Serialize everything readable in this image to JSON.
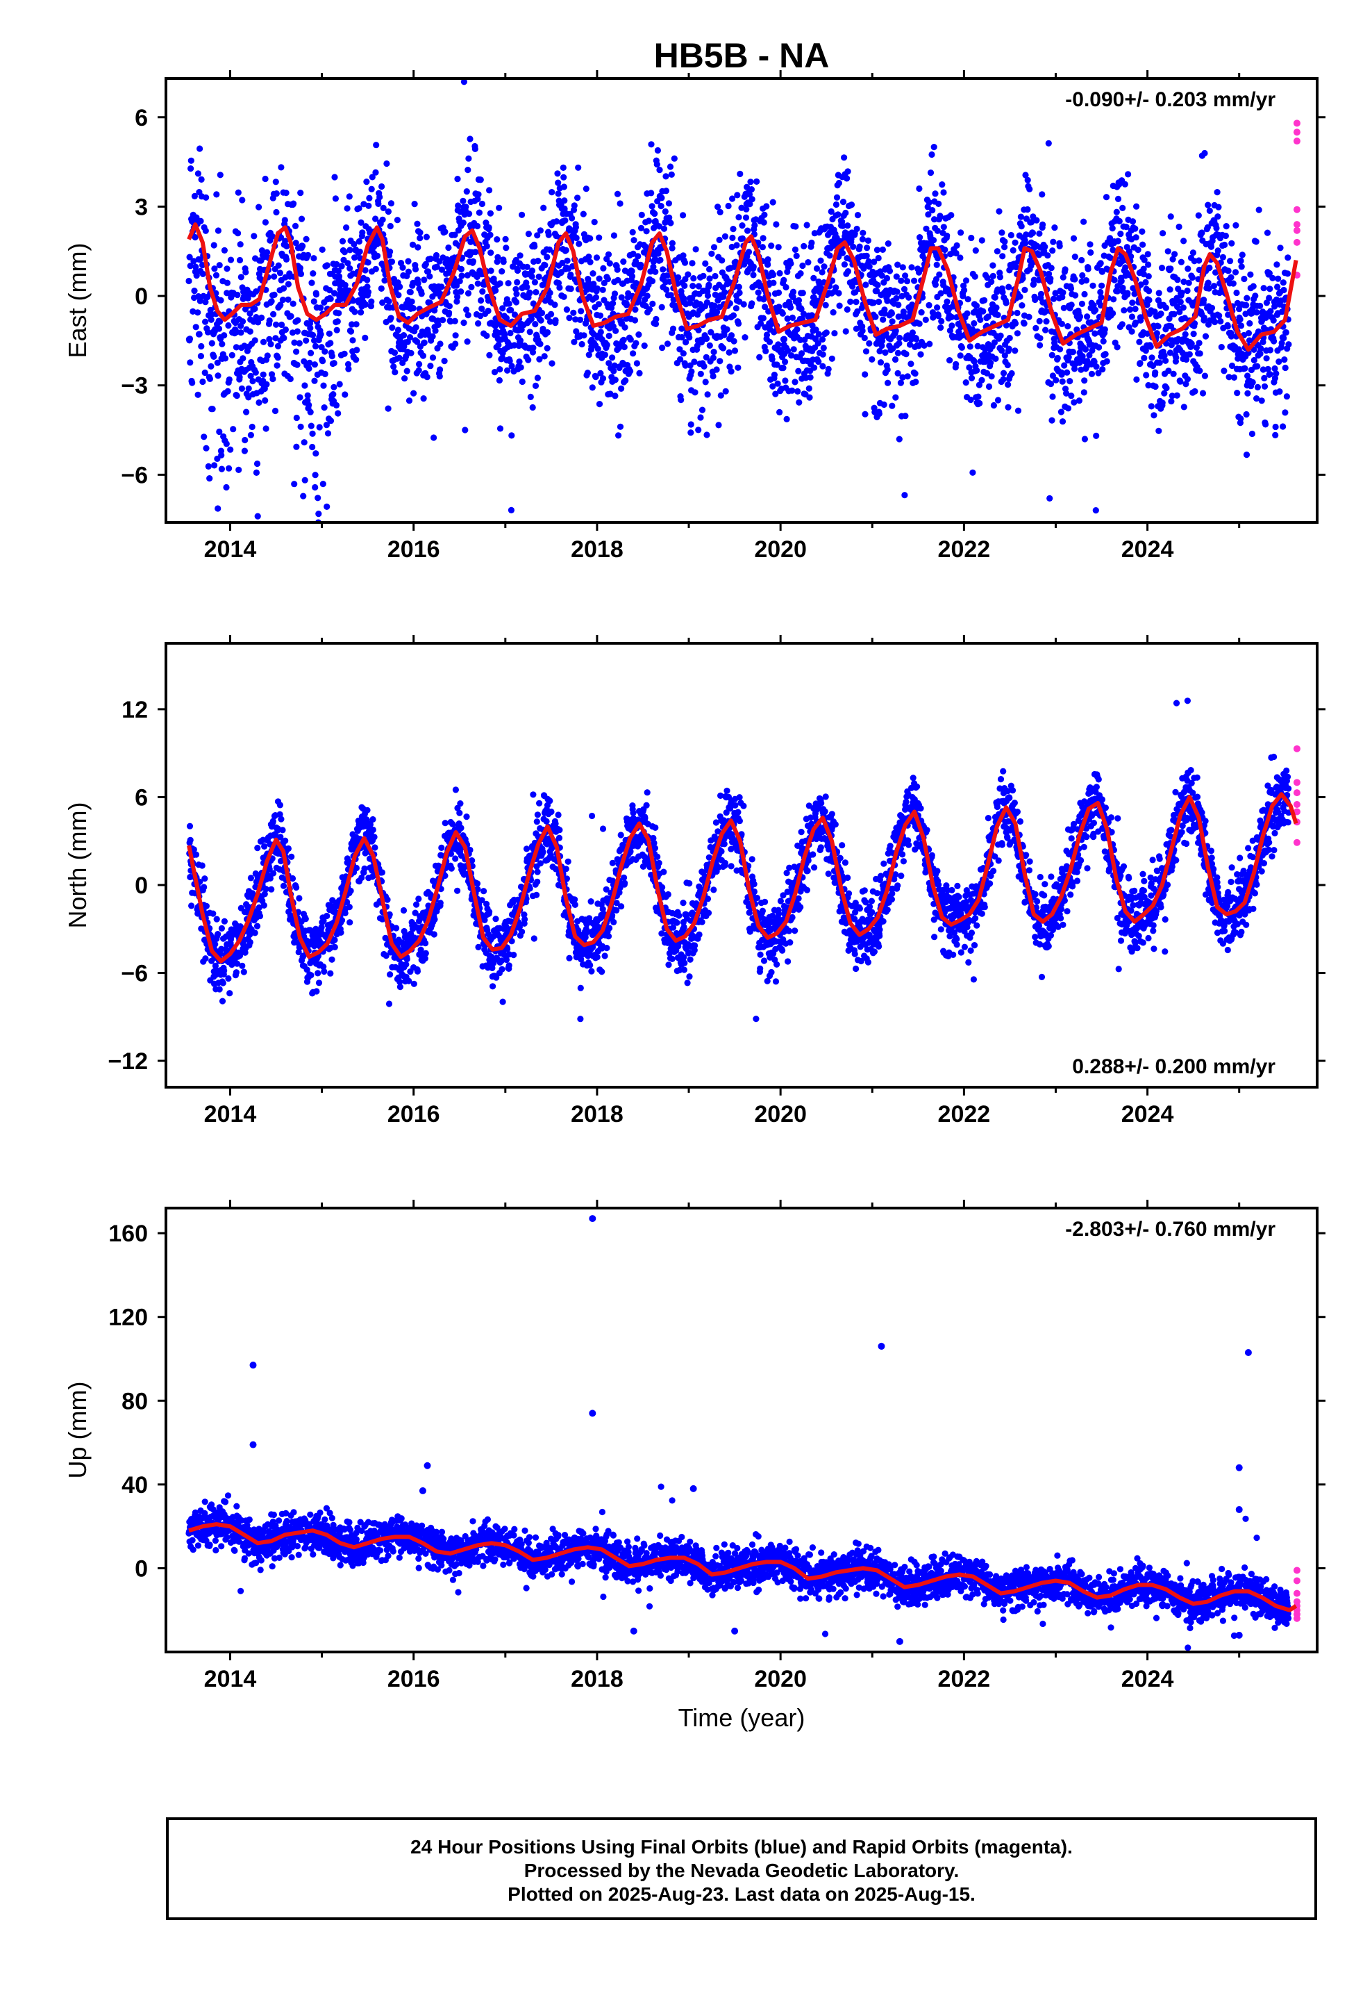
{
  "title": "HB5B - NA",
  "colors": {
    "final_orbits": "#0000ff",
    "rapid_orbits": "#ff33cc",
    "model_fit": "#ee1111",
    "frame": "#000000"
  },
  "footer": {
    "line1": "24 Hour Positions Using Final Orbits (blue) and Rapid Orbits (magenta).",
    "line2": "Processed by the Nevada Geodetic Laboratory.",
    "line3": "Plotted on 2025-Aug-23. Last data on 2025-Aug-15."
  },
  "chart_data": [
    {
      "type": "scatter",
      "component": "east",
      "ylabel": "East (mm)",
      "xlabel": "",
      "xlim": [
        2013.3,
        2025.85
      ],
      "ylim": [
        -7.6,
        7.3
      ],
      "xticks": [
        2014,
        2016,
        2018,
        2020,
        2022,
        2024
      ],
      "yticks": [
        -6,
        -3,
        0,
        3,
        6
      ],
      "rate_label": "-0.090+/- 0.203 mm/yr",
      "rate_position": "top-right",
      "data_span": [
        2013.55,
        2025.62
      ],
      "series": [
        {
          "name": "Final Orbits (blue)",
          "kind": "scatter"
        },
        {
          "name": "Rapid Orbits (magenta)",
          "kind": "scatter",
          "values": [
            5.8,
            5.5,
            5.2,
            2.9,
            2.4,
            2.2,
            1.8,
            0.7
          ]
        }
      ],
      "fit_curve": {
        "x": [
          2013.55,
          2013.62,
          2013.7,
          2013.78,
          2013.86,
          2013.94,
          2014.02,
          2014.12,
          2014.22,
          2014.32,
          2014.42,
          2014.52,
          2014.6,
          2014.66,
          2014.74,
          2014.84,
          2014.94,
          2015.04,
          2015.14,
          2015.26,
          2015.38,
          2015.5,
          2015.6,
          2015.66,
          2015.74,
          2015.84,
          2015.94,
          2016.04,
          2016.16,
          2016.3,
          2016.44,
          2016.56,
          2016.64,
          2016.72,
          2016.82,
          2016.94,
          2017.06,
          2017.18,
          2017.32,
          2017.46,
          2017.58,
          2017.66,
          2017.74,
          2017.84,
          2017.96,
          2018.08,
          2018.2,
          2018.34,
          2018.48,
          2018.6,
          2018.68,
          2018.76,
          2018.86,
          2018.98,
          2019.1,
          2019.22,
          2019.36,
          2019.5,
          2019.62,
          2019.68,
          2019.76,
          2019.86,
          2019.98,
          2020.1,
          2020.24,
          2020.38,
          2020.52,
          2020.62,
          2020.7,
          2020.8,
          2020.92,
          2021.04,
          2021.16,
          2021.3,
          2021.44,
          2021.56,
          2021.64,
          2021.72,
          2021.82,
          2021.94,
          2022.06,
          2022.2,
          2022.34,
          2022.48,
          2022.6,
          2022.66,
          2022.74,
          2022.84,
          2022.96,
          2023.08,
          2023.22,
          2023.36,
          2023.5,
          2023.6,
          2023.68,
          2023.76,
          2023.86,
          2023.98,
          2024.1,
          2024.24,
          2024.38,
          2024.52,
          2024.62,
          2024.68,
          2024.76,
          2024.86,
          2024.98,
          2025.1,
          2025.24,
          2025.38,
          2025.5,
          2025.62
        ],
        "y": [
          1.9,
          2.4,
          1.8,
          0.3,
          -0.5,
          -0.8,
          -0.6,
          -0.3,
          -0.3,
          -0.1,
          1.0,
          2.1,
          2.3,
          1.8,
          0.3,
          -0.6,
          -0.8,
          -0.6,
          -0.3,
          -0.3,
          0.4,
          1.7,
          2.3,
          1.9,
          0.4,
          -0.7,
          -0.9,
          -0.6,
          -0.4,
          -0.2,
          0.8,
          2.0,
          2.2,
          1.6,
          0.3,
          -0.8,
          -1.0,
          -0.6,
          -0.5,
          0.3,
          1.8,
          2.1,
          1.5,
          0.0,
          -1.0,
          -0.9,
          -0.7,
          -0.6,
          0.4,
          1.8,
          2.1,
          1.5,
          0.1,
          -1.1,
          -1.0,
          -0.8,
          -0.7,
          0.5,
          1.8,
          2.0,
          1.4,
          0.0,
          -1.2,
          -1.0,
          -0.9,
          -0.8,
          0.5,
          1.6,
          1.8,
          1.2,
          -0.2,
          -1.3,
          -1.1,
          -1.0,
          -0.8,
          0.6,
          1.6,
          1.6,
          0.9,
          -0.5,
          -1.5,
          -1.2,
          -1.0,
          -0.8,
          0.7,
          1.6,
          1.5,
          0.8,
          -0.6,
          -1.6,
          -1.3,
          -1.1,
          -0.9,
          0.8,
          1.6,
          1.4,
          0.6,
          -0.7,
          -1.7,
          -1.3,
          -1.1,
          -0.7,
          1.0,
          1.4,
          1.1,
          0.1,
          -1.2,
          -1.8,
          -1.3,
          -1.2,
          -0.8,
          1.2
        ]
      }
    },
    {
      "type": "scatter",
      "component": "north",
      "ylabel": "North (mm)",
      "xlabel": "",
      "xlim": [
        2013.3,
        2025.85
      ],
      "ylim": [
        -13.8,
        16.5
      ],
      "xticks": [
        2014,
        2016,
        2018,
        2020,
        2022,
        2024
      ],
      "yticks": [
        -12,
        -6,
        0,
        6,
        12
      ],
      "rate_label": "0.288+/- 0.200 mm/yr",
      "rate_position": "bottom-right",
      "data_span": [
        2013.55,
        2025.62
      ],
      "series": [
        {
          "name": "Final Orbits (blue)",
          "kind": "scatter"
        },
        {
          "name": "Rapid Orbits (magenta)",
          "kind": "scatter",
          "values": [
            9.3,
            7.0,
            6.3,
            5.5,
            5.0,
            4.3,
            2.9
          ]
        }
      ],
      "fit_curve": {
        "x": [
          2013.55,
          2013.62,
          2013.7,
          2013.8,
          2013.9,
          2014.0,
          2014.1,
          2014.2,
          2014.3,
          2014.4,
          2014.5,
          2014.58,
          2014.66,
          2014.76,
          2014.86,
          2014.96,
          2015.06,
          2015.16,
          2015.26,
          2015.36,
          2015.46,
          2015.56,
          2015.66,
          2015.76,
          2015.86,
          2015.96,
          2016.06,
          2016.16,
          2016.26,
          2016.36,
          2016.46,
          2016.56,
          2016.66,
          2016.76,
          2016.86,
          2016.96,
          2017.06,
          2017.16,
          2017.26,
          2017.36,
          2017.46,
          2017.56,
          2017.66,
          2017.76,
          2017.86,
          2017.96,
          2018.06,
          2018.16,
          2018.26,
          2018.36,
          2018.46,
          2018.56,
          2018.66,
          2018.76,
          2018.86,
          2018.96,
          2019.06,
          2019.16,
          2019.26,
          2019.36,
          2019.46,
          2019.56,
          2019.66,
          2019.76,
          2019.86,
          2019.96,
          2020.06,
          2020.16,
          2020.26,
          2020.36,
          2020.46,
          2020.56,
          2020.66,
          2020.76,
          2020.86,
          2020.96,
          2021.06,
          2021.16,
          2021.26,
          2021.36,
          2021.46,
          2021.56,
          2021.66,
          2021.76,
          2021.86,
          2021.96,
          2022.06,
          2022.16,
          2022.26,
          2022.36,
          2022.46,
          2022.56,
          2022.66,
          2022.76,
          2022.86,
          2022.96,
          2023.06,
          2023.16,
          2023.26,
          2023.36,
          2023.46,
          2023.56,
          2023.66,
          2023.76,
          2023.86,
          2023.96,
          2024.06,
          2024.16,
          2024.26,
          2024.36,
          2024.46,
          2024.56,
          2024.66,
          2024.76,
          2024.86,
          2024.96,
          2025.06,
          2025.16,
          2025.26,
          2025.36,
          2025.46,
          2025.56,
          2025.62
        ],
        "y": [
          2.7,
          0.5,
          -2.0,
          -4.5,
          -5.2,
          -4.7,
          -3.8,
          -2.4,
          -0.6,
          1.6,
          3.1,
          2.3,
          -0.6,
          -3.6,
          -4.9,
          -4.6,
          -4.0,
          -2.6,
          -0.4,
          2.0,
          3.2,
          2.0,
          -1.0,
          -4.0,
          -4.9,
          -4.5,
          -3.8,
          -2.4,
          -0.2,
          2.2,
          3.6,
          2.6,
          -0.6,
          -3.6,
          -4.4,
          -4.3,
          -3.4,
          -1.6,
          0.8,
          2.8,
          4.0,
          2.6,
          -0.9,
          -3.5,
          -4.1,
          -3.9,
          -3.1,
          -1.2,
          1.2,
          3.2,
          4.2,
          3.1,
          -0.3,
          -3.0,
          -3.8,
          -3.5,
          -2.6,
          -0.8,
          1.6,
          3.5,
          4.4,
          3.0,
          -0.4,
          -2.8,
          -3.6,
          -3.3,
          -2.5,
          -0.6,
          1.9,
          3.8,
          4.6,
          3.0,
          -0.2,
          -2.6,
          -3.4,
          -3.0,
          -2.2,
          -0.4,
          2.2,
          4.1,
          5.0,
          3.2,
          0.0,
          -2.2,
          -2.7,
          -2.4,
          -2.0,
          -1.0,
          1.4,
          4.0,
          5.3,
          4.2,
          0.8,
          -2.0,
          -2.5,
          -2.0,
          -0.8,
          1.0,
          3.4,
          5.2,
          5.6,
          3.8,
          0.4,
          -1.8,
          -2.5,
          -2.0,
          -1.4,
          0.0,
          2.4,
          4.8,
          6.0,
          4.6,
          1.2,
          -1.5,
          -2.0,
          -1.8,
          -1.2,
          0.8,
          3.4,
          5.4,
          6.2,
          5.4,
          4.2
        ]
      }
    },
    {
      "type": "scatter",
      "component": "up",
      "ylabel": "Up (mm)",
      "xlabel": "Time (year)",
      "xlim": [
        2013.3,
        2025.85
      ],
      "ylim": [
        -40,
        172
      ],
      "xticks": [
        2014,
        2016,
        2018,
        2020,
        2022,
        2024
      ],
      "yticks": [
        0,
        40,
        80,
        120,
        160
      ],
      "rate_label": "-2.803+/- 0.760 mm/yr",
      "rate_position": "top-right",
      "data_span": [
        2013.55,
        2025.62
      ],
      "series": [
        {
          "name": "Final Orbits (blue)",
          "kind": "scatter"
        },
        {
          "name": "Rapid Orbits (magenta)",
          "kind": "scatter",
          "values": [
            -1.0,
            -6.0,
            -12.0,
            -16.0,
            -18.0,
            -20.0,
            -22.0,
            -24.0
          ]
        }
      ],
      "outliers": [
        {
          "x": 2014.25,
          "y": 97
        },
        {
          "x": 2014.25,
          "y": 59
        },
        {
          "x": 2017.95,
          "y": 167
        },
        {
          "x": 2017.95,
          "y": 74
        },
        {
          "x": 2016.15,
          "y": 49
        },
        {
          "x": 2016.1,
          "y": 37
        },
        {
          "x": 2019.05,
          "y": 38
        },
        {
          "x": 2021.1,
          "y": 106
        },
        {
          "x": 2025.1,
          "y": 103
        },
        {
          "x": 2025.0,
          "y": 48
        },
        {
          "x": 2025.0,
          "y": 28
        },
        {
          "x": 2018.4,
          "y": -30
        },
        {
          "x": 2019.5,
          "y": -30
        },
        {
          "x": 2021.3,
          "y": -35
        },
        {
          "x": 2025.0,
          "y": -32
        }
      ],
      "fit_curve": {
        "x": [
          2013.55,
          2013.7,
          2013.85,
          2014.0,
          2014.15,
          2014.3,
          2014.45,
          2014.6,
          2014.75,
          2014.9,
          2015.05,
          2015.2,
          2015.35,
          2015.5,
          2015.65,
          2015.8,
          2015.95,
          2016.1,
          2016.25,
          2016.4,
          2016.55,
          2016.7,
          2016.85,
          2017.0,
          2017.15,
          2017.3,
          2017.45,
          2017.6,
          2017.75,
          2017.9,
          2018.05,
          2018.2,
          2018.35,
          2018.5,
          2018.65,
          2018.8,
          2018.95,
          2019.1,
          2019.25,
          2019.4,
          2019.55,
          2019.7,
          2019.85,
          2020.0,
          2020.15,
          2020.3,
          2020.45,
          2020.6,
          2020.75,
          2020.9,
          2021.05,
          2021.2,
          2021.35,
          2021.5,
          2021.65,
          2021.8,
          2021.95,
          2022.1,
          2022.25,
          2022.4,
          2022.55,
          2022.7,
          2022.85,
          2023.0,
          2023.15,
          2023.3,
          2023.45,
          2023.6,
          2023.75,
          2023.9,
          2024.05,
          2024.2,
          2024.35,
          2024.5,
          2024.65,
          2024.8,
          2024.95,
          2025.1,
          2025.25,
          2025.4,
          2025.55,
          2025.62
        ],
        "y": [
          18,
          20,
          21,
          20,
          16,
          12,
          13,
          16,
          17,
          18,
          16,
          12,
          10,
          12,
          14,
          15,
          15,
          12,
          8,
          7,
          9,
          11,
          12,
          11,
          8,
          4,
          5,
          7,
          9,
          10,
          9,
          5,
          1,
          2,
          4,
          5,
          5,
          2,
          -3,
          -2,
          0,
          2,
          3,
          3,
          0,
          -5,
          -4,
          -2,
          -1,
          0,
          -1,
          -5,
          -9,
          -8,
          -6,
          -4,
          -3,
          -4,
          -8,
          -12,
          -11,
          -9,
          -7,
          -6,
          -7,
          -11,
          -14,
          -13,
          -10,
          -8,
          -8,
          -10,
          -14,
          -17,
          -16,
          -13,
          -11,
          -11,
          -14,
          -18,
          -20,
          -18
        ]
      }
    }
  ]
}
